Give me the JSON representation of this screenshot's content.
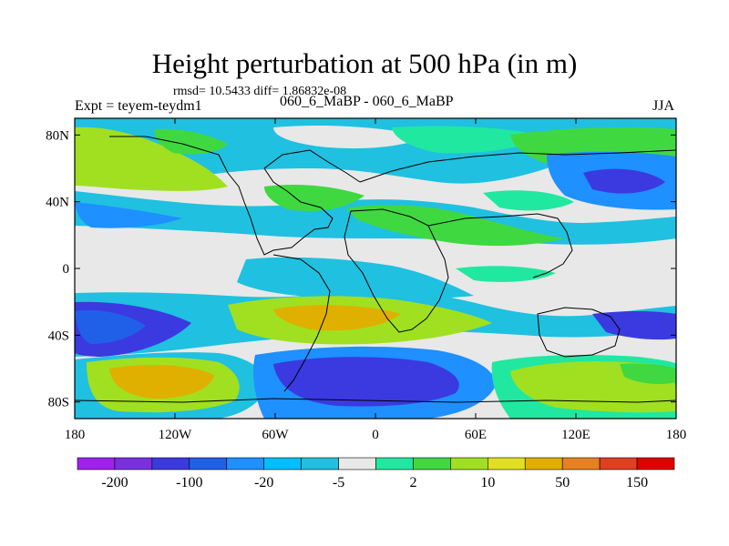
{
  "title": "Height perturbation at 500 hPa (in m)",
  "stats": "rmsd= 10.5433 diff= 1.86832e-08",
  "experiment": "Expt = teyem-teydm1",
  "comparison": "060_6_MaBP - 060_6_MaBP",
  "season": "JJA",
  "map": {
    "projection": "cylindrical-equidistant",
    "lon_range": [
      -180,
      180
    ],
    "lat_range": [
      -90,
      90
    ],
    "lon_ticks": [
      "180",
      "120W",
      "60W",
      "0",
      "60E",
      "120E",
      "180"
    ],
    "lat_ticks": [
      "80N",
      "40N",
      "0",
      "40S",
      "80S"
    ],
    "lon_tick_values": [
      -180,
      -120,
      -60,
      0,
      60,
      120,
      180
    ],
    "lat_tick_values": [
      80,
      40,
      0,
      -40,
      -80
    ],
    "field": "500 hPa height perturbation",
    "units": "m"
  },
  "colorbar": {
    "labels": [
      "-200",
      "-100",
      "-20",
      "-5",
      "2",
      "10",
      "50",
      "150"
    ],
    "colors": [
      "#a020f0",
      "#7a30e0",
      "#3a3ae0",
      "#2060e8",
      "#1e90ff",
      "#00bfff",
      "#20c0e0",
      "#e8e8e8",
      "#20e8a0",
      "#40d840",
      "#a0e020",
      "#e0e020",
      "#e0b000",
      "#e88020",
      "#e04020",
      "#e00000"
    ]
  },
  "palette": {
    "neutral": "#e8e8e8",
    "cyan": "#20c0e0",
    "light_blue": "#1e90ff",
    "blue": "#3a3ae0",
    "teal_green": "#20e8a0",
    "green": "#40d840",
    "yellow_green": "#a0e020",
    "gold": "#e0b000"
  }
}
